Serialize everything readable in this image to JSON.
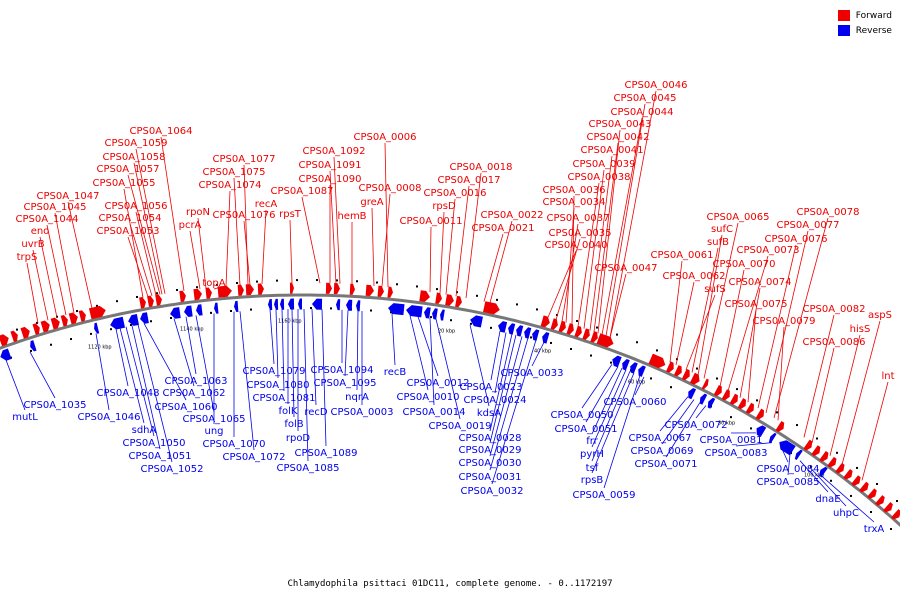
{
  "legend": {
    "items": [
      {
        "label": "Forward",
        "color": "#ee0000"
      },
      {
        "label": "Reverse",
        "color": "#0000ee"
      }
    ]
  },
  "caption": "Chlamydophila psittaci 01DC11, complete genome. - 0..1172197",
  "colors": {
    "forward": "#ee0000",
    "reverse": "#0000ee",
    "backbone": "#777777"
  },
  "ticks": [
    "1120 kbp",
    "1140 kbp",
    "1160 kbp",
    "20 kbp",
    "40 kbp",
    "60 kbp",
    "80 kbp",
    "100 kbp"
  ],
  "forward_labels": [
    "trpS",
    "uvrB",
    "eno",
    "CPS0A_1044",
    "CPS0A_1045",
    "CPS0A_1047",
    "CPS0A_1053",
    "CPS0A_1054",
    "CPS0A_1056",
    "CPS0A_1055",
    "CPS0A_1057",
    "CPS0A_1058",
    "CPS0A_1059",
    "CPS0A_1064",
    "pcrA",
    "rpoN",
    "topA",
    "CPS0A_1074",
    "CPS0A_1075",
    "CPS0A_1077",
    "CPS0A_1076",
    "recA",
    "rpsT",
    "CPS0A_1087",
    "CPS0A_1090",
    "CPS0A_1091",
    "CPS0A_1092",
    "hemB",
    "greA",
    "CPS0A_0008",
    "CPS0A_0006",
    "CPS0A_0011",
    "rpsD",
    "CPS0A_0016",
    "CPS0A_0017",
    "CPS0A_0018",
    "CPS0A_0021",
    "CPS0A_0022",
    "CPS0A_0040",
    "CPS0A_0035",
    "CPS0A_0037",
    "CPS0A_0034",
    "CPS0A_0036",
    "CPS0A_0038",
    "CPS0A_0039",
    "CPS0A_0041",
    "CPS0A_0042",
    "CPS0A_0043",
    "CPS0A_0044",
    "CPS0A_0045",
    "CPS0A_0046",
    "CPS0A_0047",
    "CPS0A_0061",
    "CPS0A_0062",
    "sufS",
    "sufB",
    "sufC",
    "CPS0A_0065",
    "CPS0A_0070",
    "CPS0A_0073",
    "CPS0A_0074",
    "CPS0A_0075",
    "CPS0A_0076",
    "CPS0A_0077",
    "CPS0A_0078",
    "CPS0A_0079",
    "CPS0A_0082",
    "CPS0A_0086",
    "hisS",
    "aspS",
    "lnt"
  ],
  "reverse_labels": [
    "mutL",
    "CPS0A_1035",
    "CPS0A_1046",
    "CPS0A_1048",
    "sdhA",
    "CPS0A_1050",
    "CPS0A_1051",
    "CPS0A_1052",
    "CPS0A_1060",
    "CPS0A_1062",
    "CPS0A_1063",
    "CPS0A_1065",
    "ung",
    "CPS0A_1070",
    "CPS0A_1072",
    "CPS0A_1079",
    "CPS0A_1080",
    "CPS0A_1081",
    "folK",
    "folB",
    "rpoD",
    "CPS0A_1085",
    "recD",
    "CPS0A_1089",
    "CPS0A_1094",
    "CPS0A_1095",
    "nqrA",
    "CPS0A_0003",
    "recB",
    "CPS0A_0010",
    "CPS0A_0012",
    "CPS0A_0014",
    "CPS0A_0019",
    "kdsA",
    "CPS0A_0023",
    "CPS0A_0024",
    "CPS0A_0028",
    "CPS0A_0029",
    "CPS0A_0030",
    "CPS0A_0031",
    "CPS0A_0032",
    "CPS0A_0033",
    "CPS0A_0050",
    "CPS0A_0051",
    "frr",
    "pyrH",
    "tsf",
    "rpsB",
    "CPS0A_0059",
    "CPS0A_0060",
    "CPS0A_0067",
    "CPS0A_0069",
    "CPS0A_0071",
    "CPS0A_0072",
    "CPS0A_0081",
    "CPS0A_0083",
    "CPS0A_0084",
    "CPS0A_0085",
    "dnaE",
    "uhpC",
    "trxA"
  ]
}
